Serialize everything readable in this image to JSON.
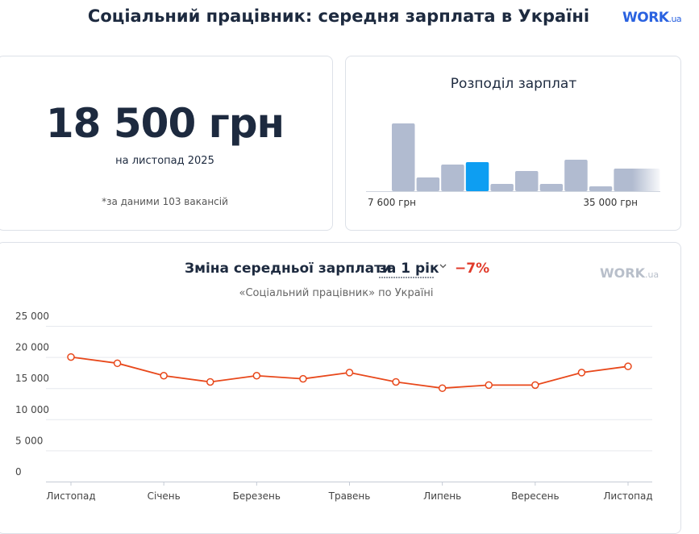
{
  "header": {
    "title": "Соціальний працівник: середня зарплата в Україні",
    "logo": {
      "main": "WORK",
      "suffix": ".ua"
    }
  },
  "summary": {
    "salary": "18 500 грн",
    "date": "на листопад 2025",
    "note": "*за даними 103 вакансій"
  },
  "chart_data": [
    {
      "type": "histogram",
      "title": "Розподіл зарплат",
      "values": [
        84,
        17,
        33,
        36,
        9,
        25,
        9,
        39,
        6,
        28
      ],
      "color": "#b1bbd0",
      "highlight_index": 3,
      "highlight_color": "#0d9ef2",
      "x_labels": [
        "7 600 грн",
        "35 000 грн"
      ]
    },
    {
      "type": "line",
      "title": "Зміна середньої зарплати",
      "period": "за 1 рік",
      "change": "−7%",
      "subtitle": "«Соціальний працівник» по Україні",
      "watermark": {
        "main": "WORK",
        "suffix": ".ua"
      },
      "categories": [
        "Листопад",
        null,
        "Січень",
        null,
        "Березень",
        null,
        "Травень",
        null,
        "Липень",
        null,
        "Вересень",
        null,
        "Листопад"
      ],
      "values": [
        20000,
        19000,
        17000,
        16000,
        17000,
        16500,
        17500,
        16000,
        15000,
        15500,
        15500,
        17500,
        18500
      ],
      "color": "#e8481b",
      "ylim": [
        0,
        25000
      ],
      "yticks": [
        0,
        {
          "value": 5000,
          "label": "5 000"
        },
        {
          "value": 10000,
          "label": "10 000"
        },
        {
          "value": 15000,
          "label": "15 000"
        },
        {
          "value": 20000,
          "label": "20 000"
        },
        {
          "value": 25000,
          "label": "25 000"
        }
      ],
      "grid": true
    }
  ]
}
